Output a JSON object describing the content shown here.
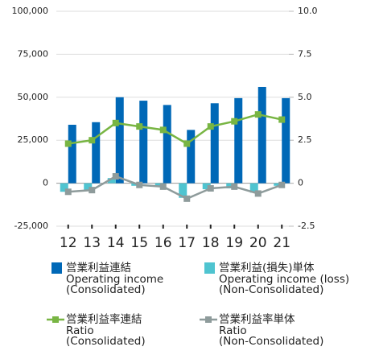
{
  "chart_data": {
    "type": "bar-line",
    "categories": [
      "12",
      "13",
      "14",
      "15",
      "16",
      "17",
      "18",
      "19",
      "20",
      "21"
    ],
    "series": [
      {
        "name": "営業利益連結",
        "label_lines": [
          "Operating income",
          "(Consolidated)"
        ],
        "color": "#0068b7",
        "kind": "bar",
        "axis": "y",
        "values": [
          34000,
          35500,
          50000,
          48000,
          45500,
          31000,
          46500,
          49500,
          56000,
          49500
        ]
      },
      {
        "name": "営業利益(損失)単体",
        "label_lines": [
          "Operating income (loss)",
          "(Non-Consolidated)"
        ],
        "color": "#4fc4d0",
        "kind": "bar",
        "axis": "y",
        "values": [
          -5000,
          -4500,
          3000,
          -1500,
          -2000,
          -8500,
          -3500,
          -3000,
          -5500,
          -1500
        ]
      },
      {
        "name": "営業利益率連結",
        "label_lines": [
          "Ratio",
          "(Consolidated)"
        ],
        "color": "#78b543",
        "kind": "line",
        "axis": "y2",
        "values": [
          2.3,
          2.5,
          3.5,
          3.3,
          3.1,
          2.3,
          3.3,
          3.6,
          4.0,
          3.7
        ]
      },
      {
        "name": "営業利益率単体",
        "label_lines": [
          "Ratio",
          "(Non-Consolidated)"
        ],
        "color": "#8e9b9b",
        "kind": "line",
        "axis": "y2",
        "values": [
          -0.5,
          -0.4,
          0.4,
          -0.1,
          -0.2,
          -0.9,
          -0.3,
          -0.2,
          -0.6,
          -0.1
        ]
      }
    ],
    "ylim": [
      -25000,
      100000
    ],
    "yticks": [
      {
        "value": -25000,
        "label": "-25,000"
      },
      0,
      {
        "value": 25000,
        "label": "25,000"
      },
      {
        "value": 50000,
        "label": "50,000"
      },
      {
        "value": 75000,
        "label": "75,000"
      },
      {
        "value": 100000,
        "label": "100,000"
      }
    ],
    "y2lim": [
      -2.5,
      10
    ],
    "y2ticks": [
      -2.5,
      0,
      2.5,
      {
        "value": 5,
        "label": "5.0"
      },
      7.5,
      {
        "value": 10,
        "label": "10.0"
      }
    ],
    "grid": true
  }
}
